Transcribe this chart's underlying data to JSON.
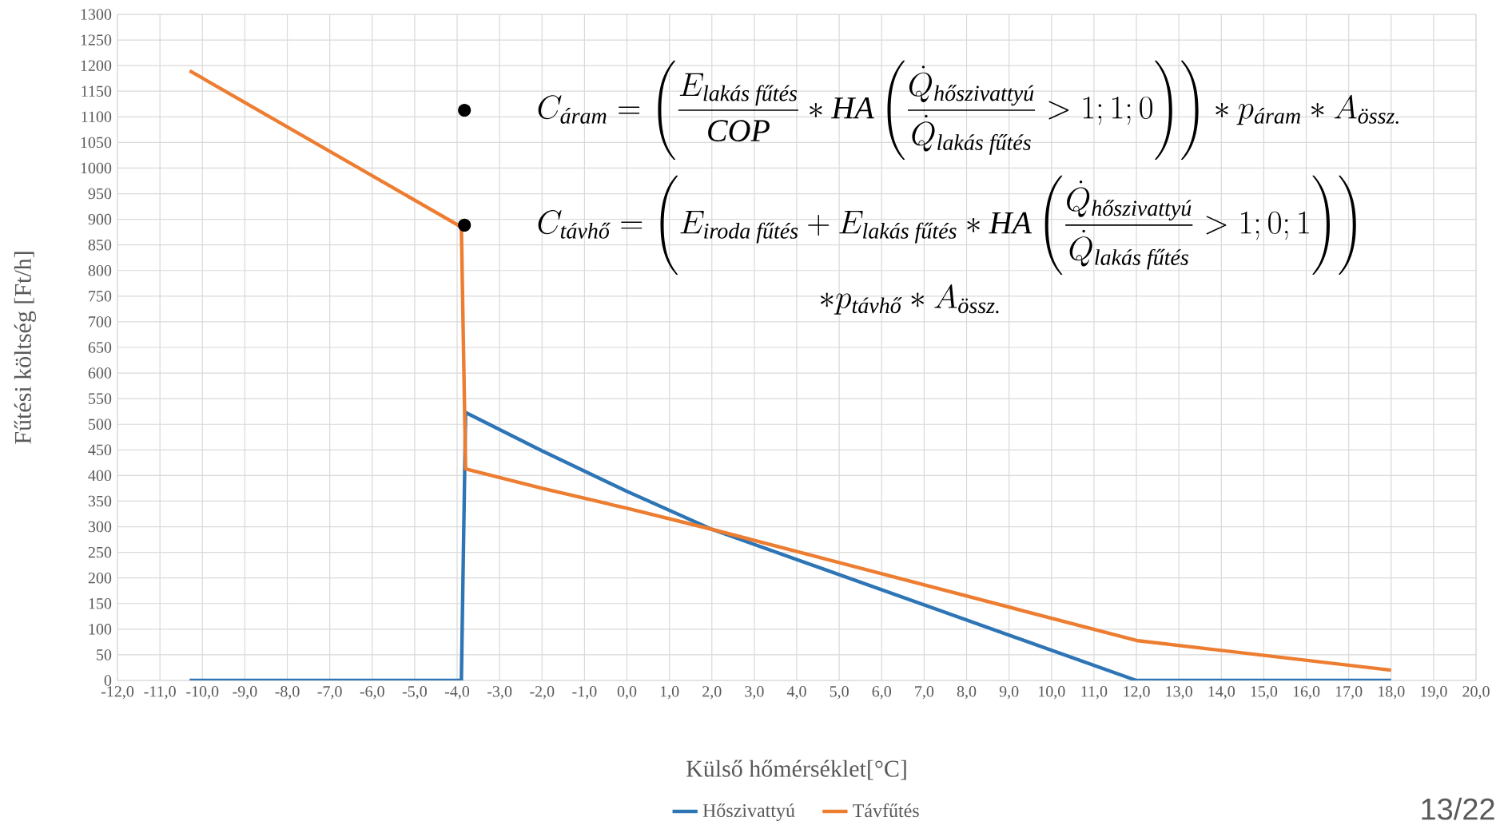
{
  "chart_data": {
    "type": "line",
    "xlabel": "Külső hőmérséklet[°C]",
    "ylabel": "Fűtési költség [Ft/h]",
    "series": [
      {
        "name": "Hőszivattyú",
        "color": "#2e75b6",
        "x": [
          -10.3,
          -3.9,
          -3.8,
          -2,
          0,
          2,
          12,
          18
        ],
        "values": [
          0,
          0,
          523,
          448,
          369,
          295,
          0,
          0
        ]
      },
      {
        "name": "Távfűtés",
        "color": "#ed7d31",
        "x": [
          -10.3,
          -3.9,
          -3.8,
          -2,
          0,
          2,
          12,
          18
        ],
        "values": [
          1190,
          885,
          413,
          375,
          336,
          295,
          78,
          20
        ]
      }
    ],
    "xlim": [
      -12,
      20
    ],
    "xticks": [
      {
        "value": -12,
        "label": "-12,0"
      },
      {
        "value": -11,
        "label": "-11,0"
      },
      {
        "value": -10,
        "label": "-10,0"
      },
      {
        "value": -9,
        "label": "-9,0"
      },
      {
        "value": -8,
        "label": "-8,0"
      },
      {
        "value": -7,
        "label": "-7,0"
      },
      {
        "value": -6,
        "label": "-6,0"
      },
      {
        "value": -5,
        "label": "-5,0"
      },
      {
        "value": -4,
        "label": "-4,0"
      },
      {
        "value": -3,
        "label": "-3,0"
      },
      {
        "value": -2,
        "label": "-2,0"
      },
      {
        "value": -1,
        "label": "-1,0"
      },
      {
        "value": 0,
        "label": "0,0"
      },
      {
        "value": 1,
        "label": "1,0"
      },
      {
        "value": 2,
        "label": "2,0"
      },
      {
        "value": 3,
        "label": "3,0"
      },
      {
        "value": 4,
        "label": "4,0"
      },
      {
        "value": 5,
        "label": "5,0"
      },
      {
        "value": 6,
        "label": "6,0"
      },
      {
        "value": 7,
        "label": "7,0"
      },
      {
        "value": 8,
        "label": "8,0"
      },
      {
        "value": 9,
        "label": "9,0"
      },
      {
        "value": 10,
        "label": "10,0"
      },
      {
        "value": 11,
        "label": "11,0"
      },
      {
        "value": 12,
        "label": "12,0"
      },
      {
        "value": 13,
        "label": "13,0"
      },
      {
        "value": 14,
        "label": "14,0"
      },
      {
        "value": 15,
        "label": "15,0"
      },
      {
        "value": 16,
        "label": "16,0"
      },
      {
        "value": 17,
        "label": "17,0"
      },
      {
        "value": 18,
        "label": "18,0"
      },
      {
        "value": 19,
        "label": "19,0"
      },
      {
        "value": 20,
        "label": "20,0"
      }
    ],
    "ylim": [
      0,
      1300
    ],
    "yticks": [
      0,
      50,
      100,
      150,
      200,
      250,
      300,
      350,
      400,
      450,
      500,
      550,
      600,
      650,
      700,
      750,
      800,
      850,
      900,
      950,
      1000,
      1050,
      1100,
      1150,
      1200,
      1250,
      1300
    ],
    "grid": true,
    "legend": "bottom",
    "marker": "none",
    "line_style": "solid",
    "annotations": [
      "\\bullet\\qquad C_{\\textit{áram}}=\\left(\\frac{E_{\\textit{lakás fűtés}}}{\\textit{COP}}*\\mathit{HA}\\left(\\frac{\\dot{Q}_{\\textit{hőszivattyú}}}{\\dot{Q}_{\\textit{lakás fűtés}}}>1;1;0\\right)\\right)*p_{\\textit{áram}}*A_{\\textit{össz.}}",
      "\\begin{gathered}\\bullet\\qquad C_{\\textit{távhő}}=\\left(E_{\\textit{iroda fűtés}}+E_{\\textit{lakás fűtés}}*\\mathit{HA}\\left(\\frac{\\dot{Q}_{\\textit{hőszivattyú}}}{\\dot{Q}_{\\textit{lakás fűtés}}}>1;0;1\\right)\\right)\\\\ *p_{\\textit{távhő}}*A_{\\textit{össz.}}\\end{gathered}",
      "13/22"
    ]
  }
}
